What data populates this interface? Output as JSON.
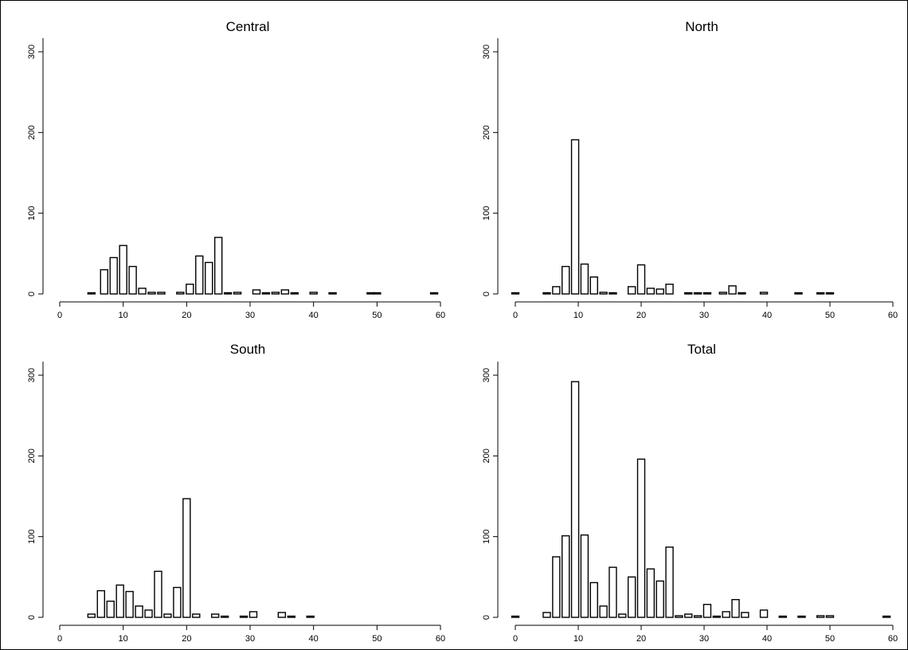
{
  "chart_data": [
    {
      "type": "bar",
      "title": "Central",
      "xlim": [
        0,
        60
      ],
      "ylim": [
        0,
        300
      ],
      "xticks": [
        "0",
        "10",
        "20",
        "30",
        "40",
        "50",
        "60"
      ],
      "yticks": [
        "0",
        "100",
        "200",
        "300"
      ],
      "x": [
        5,
        7,
        8.5,
        10,
        11.5,
        13,
        14.5,
        16,
        19,
        20.5,
        22,
        23.5,
        25,
        26.5,
        28,
        31,
        32.5,
        34,
        35.5,
        37,
        40,
        43,
        49,
        50,
        59
      ],
      "values": [
        1,
        30,
        45,
        60,
        34,
        7,
        2,
        2,
        2,
        12,
        47,
        39,
        70,
        1,
        2,
        5,
        1,
        2,
        5,
        1,
        2,
        1,
        1,
        1,
        1
      ]
    },
    {
      "type": "bar",
      "title": "North",
      "xlim": [
        0,
        60
      ],
      "ylim": [
        0,
        300
      ],
      "xticks": [
        "0",
        "10",
        "20",
        "30",
        "40",
        "50",
        "60"
      ],
      "yticks": [
        "0",
        "100",
        "200",
        "300"
      ],
      "x": [
        0,
        5,
        6.5,
        8,
        9.5,
        11,
        12.5,
        14,
        15.5,
        18.5,
        20,
        21.5,
        23,
        24.5,
        27.5,
        29,
        30.5,
        33,
        34.5,
        36,
        39.5,
        45,
        48.5,
        50
      ],
      "values": [
        1,
        1,
        9,
        34,
        191,
        37,
        21,
        2,
        1,
        9,
        36,
        7,
        6,
        12,
        1,
        1,
        1,
        2,
        10,
        1,
        2,
        1,
        1,
        1
      ]
    },
    {
      "type": "bar",
      "title": "South",
      "xlim": [
        0,
        60
      ],
      "ylim": [
        0,
        300
      ],
      "xticks": [
        "0",
        "10",
        "20",
        "30",
        "40",
        "50",
        "60"
      ],
      "yticks": [
        "0",
        "100",
        "200",
        "300"
      ],
      "x": [
        5,
        6.5,
        8,
        9.5,
        11,
        12.5,
        14,
        15.5,
        17,
        18.5,
        20,
        21.5,
        24.5,
        26,
        29,
        30.5,
        35,
        36.5,
        39.5
      ],
      "values": [
        4,
        33,
        20,
        40,
        32,
        14,
        9,
        57,
        4,
        37,
        147,
        4,
        4,
        1,
        1,
        7,
        6,
        1,
        1
      ]
    },
    {
      "type": "bar",
      "title": "Total",
      "xlim": [
        0,
        60
      ],
      "ylim": [
        0,
        300
      ],
      "xticks": [
        "0",
        "10",
        "20",
        "30",
        "40",
        "50",
        "60"
      ],
      "yticks": [
        "0",
        "100",
        "200",
        "300"
      ],
      "x": [
        0,
        5,
        6.5,
        8,
        9.5,
        11,
        12.5,
        14,
        15.5,
        17,
        18.5,
        20,
        21.5,
        23,
        24.5,
        26,
        27.5,
        29,
        30.5,
        32,
        33.5,
        35,
        36.5,
        39.5,
        42.5,
        45.5,
        48.5,
        50,
        59
      ],
      "values": [
        1,
        6,
        75,
        101,
        292,
        102,
        43,
        14,
        62,
        4,
        50,
        196,
        60,
        45,
        87,
        2,
        4,
        2,
        16,
        1,
        7,
        22,
        6,
        9,
        1,
        1,
        2,
        2,
        1
      ]
    }
  ]
}
